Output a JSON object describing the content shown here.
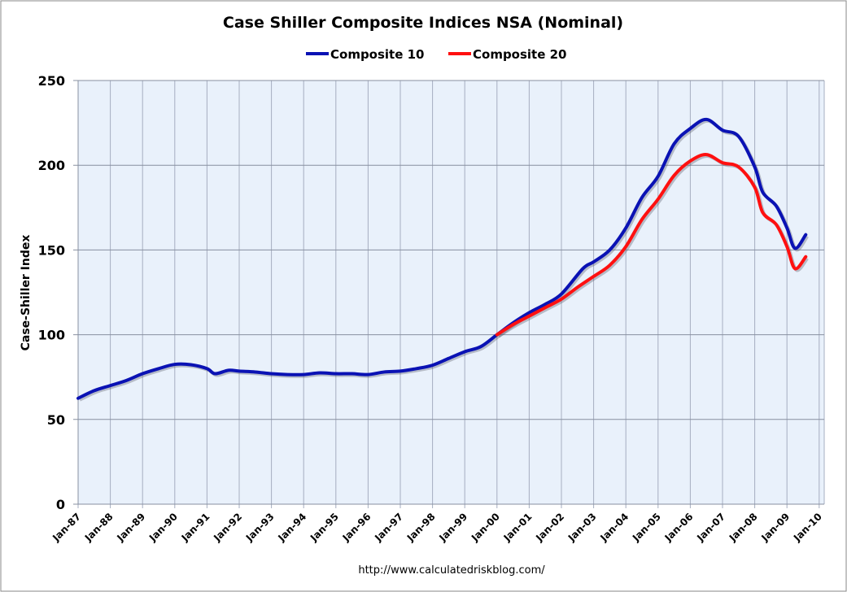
{
  "chart_data": {
    "type": "line",
    "title": "Case Shiller Composite Indices NSA (Nominal)",
    "ylabel": "Case-Shiller Index",
    "xlabel": "",
    "source": "http://www.calculatedriskblog.com/",
    "ylim": [
      0,
      250
    ],
    "yticks": [
      0,
      50,
      100,
      150,
      200,
      250
    ],
    "xlim": [
      "1987-01",
      "2010-01"
    ],
    "xtick_labels": [
      "Jan-87",
      "Jan-88",
      "Jan-89",
      "Jan-90",
      "Jan-91",
      "Jan-92",
      "Jan-93",
      "Jan-94",
      "Jan-95",
      "Jan-96",
      "Jan-97",
      "Jan-98",
      "Jan-99",
      "Jan-00",
      "Jan-01",
      "Jan-02",
      "Jan-03",
      "Jan-04",
      "Jan-05",
      "Jan-06",
      "Jan-07",
      "Jan-08",
      "Jan-09",
      "Jan-10"
    ],
    "grid": true,
    "legend_position": "top",
    "series": [
      {
        "name": "Composite 10",
        "color": "#0a12b4",
        "x": [
          "1987-01",
          "1987-07",
          "1988-01",
          "1988-07",
          "1989-01",
          "1989-07",
          "1990-01",
          "1990-07",
          "1991-01",
          "1991-04",
          "1991-09",
          "1992-01",
          "1992-07",
          "1993-01",
          "1993-07",
          "1994-01",
          "1994-07",
          "1995-01",
          "1995-07",
          "1996-01",
          "1996-07",
          "1997-01",
          "1997-07",
          "1998-01",
          "1998-07",
          "1999-01",
          "1999-07",
          "2000-01",
          "2000-07",
          "2001-01",
          "2001-07",
          "2002-01",
          "2002-09",
          "2003-01",
          "2003-07",
          "2004-01",
          "2004-07",
          "2005-01",
          "2005-07",
          "2006-01",
          "2006-07",
          "2007-01",
          "2007-07",
          "2008-01",
          "2008-04",
          "2008-09",
          "2009-01",
          "2009-04",
          "2009-08"
        ],
        "values": [
          62.5,
          67,
          70,
          73,
          77,
          80,
          82.5,
          82.3,
          80,
          77,
          79,
          78.5,
          78,
          77,
          76.5,
          76.5,
          77.5,
          77,
          77,
          76.5,
          78,
          78.5,
          80,
          82,
          86,
          90,
          93,
          100,
          107,
          113,
          118,
          124,
          139,
          143,
          150,
          163,
          181,
          193.5,
          212.7,
          221.7,
          227,
          220.7,
          217,
          199,
          184,
          176,
          163,
          151,
          159
        ]
      },
      {
        "name": "Composite 20",
        "color": "#ff1010",
        "x": [
          "2000-01",
          "2000-07",
          "2001-01",
          "2001-07",
          "2002-01",
          "2002-07",
          "2003-01",
          "2003-07",
          "2004-01",
          "2004-07",
          "2005-01",
          "2005-07",
          "2006-01",
          "2006-07",
          "2007-01",
          "2007-07",
          "2008-01",
          "2008-04",
          "2008-09",
          "2009-01",
          "2009-04",
          "2009-08"
        ],
        "values": [
          100,
          106,
          111,
          116,
          121,
          128,
          134.4,
          141,
          152,
          168,
          180,
          194,
          202.5,
          206.3,
          201.5,
          199,
          187,
          172,
          165,
          152,
          139,
          146
        ]
      }
    ]
  }
}
